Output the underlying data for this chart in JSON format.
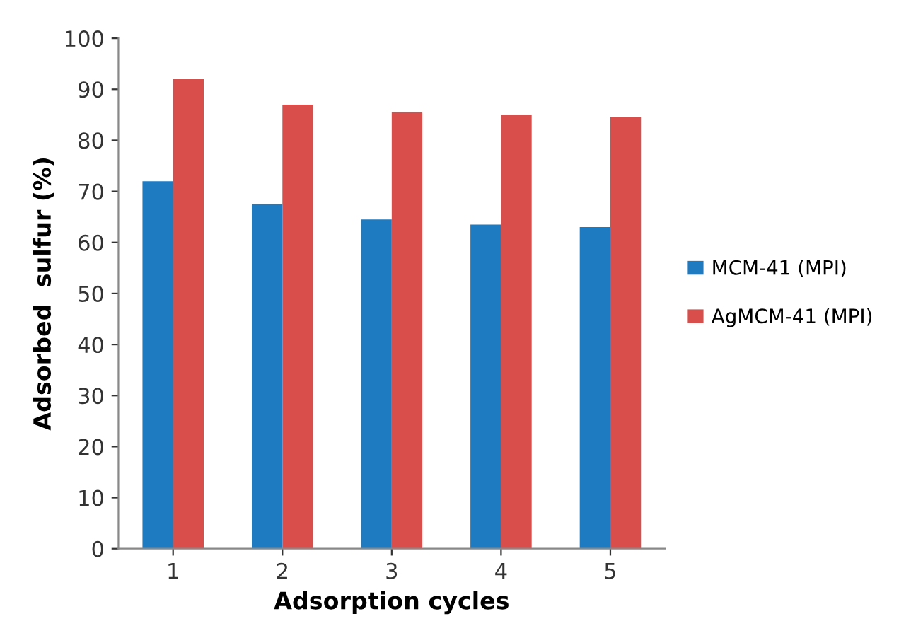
{
  "chart_data": {
    "type": "bar",
    "xlabel": "Adsorption cycles",
    "ylabel": "Adsorbed  sulfur (%)",
    "categories": [
      "1",
      "2",
      "3",
      "4",
      "5"
    ],
    "series": [
      {
        "name": "MCM-41 (MPI)",
        "color": "#1f7bc1",
        "values": [
          72,
          67.5,
          64.5,
          63.5,
          63
        ]
      },
      {
        "name": "AgMCM-41 (MPI)",
        "color": "#d94d4a",
        "values": [
          92,
          87,
          85.5,
          85,
          84.5
        ]
      }
    ],
    "ylim": [
      0,
      100
    ],
    "yticks": [
      0,
      10,
      20,
      30,
      40,
      50,
      60,
      70,
      80,
      90,
      100
    ],
    "grid": false,
    "legend": "right"
  }
}
